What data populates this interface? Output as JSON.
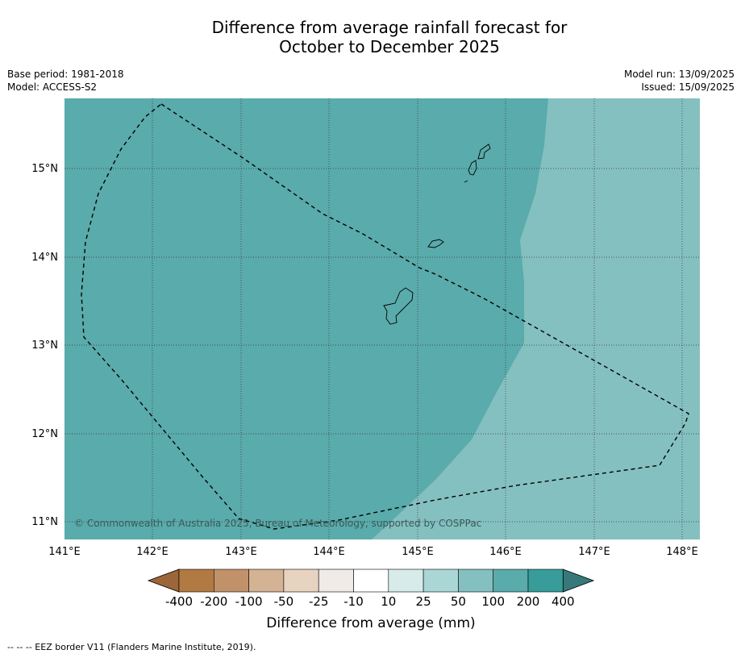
{
  "title": {
    "line1": "Difference from average rainfall forecast for",
    "line2": "October to December 2025"
  },
  "meta": {
    "base_period": "Base period: 1981-2018",
    "model": "Model: ACCESS-S2",
    "model_run": "Model run: 13/09/2025",
    "issued": "Issued: 15/09/2025"
  },
  "map": {
    "lat_labels": [
      "15°N",
      "14°N",
      "13°N",
      "12°N",
      "11°N"
    ],
    "lon_labels": [
      "141°E",
      "142°E",
      "143°E",
      "144°E",
      "145°E",
      "146°E",
      "147°E",
      "148°E"
    ],
    "copyright": "© Commonwealth of Australia 2025, Bureau of Meteorology, supported by COSPPac",
    "colors": {
      "band_100_200": "#5aabab",
      "band_50_100": "#84c0bf",
      "coast": "#000000",
      "eez_border": "#000000"
    }
  },
  "legend": {
    "ticks": [
      "-400",
      "-200",
      "-100",
      "-50",
      "-25",
      "-10",
      "10",
      "25",
      "50",
      "100",
      "200",
      "400"
    ],
    "colors": [
      "#9c6638",
      "#b07a42",
      "#c19269",
      "#d4b294",
      "#e8d2c0",
      "#f0ebe7",
      "#ffffff",
      "#d6ebea",
      "#aad6d6",
      "#84c0bf",
      "#5aabab",
      "#379c9a",
      "#37797a"
    ],
    "label": "Difference from average (mm)"
  },
  "footnote": "--  --  -- EEZ border V11 (Flanders Marine Institute, 2019)."
}
